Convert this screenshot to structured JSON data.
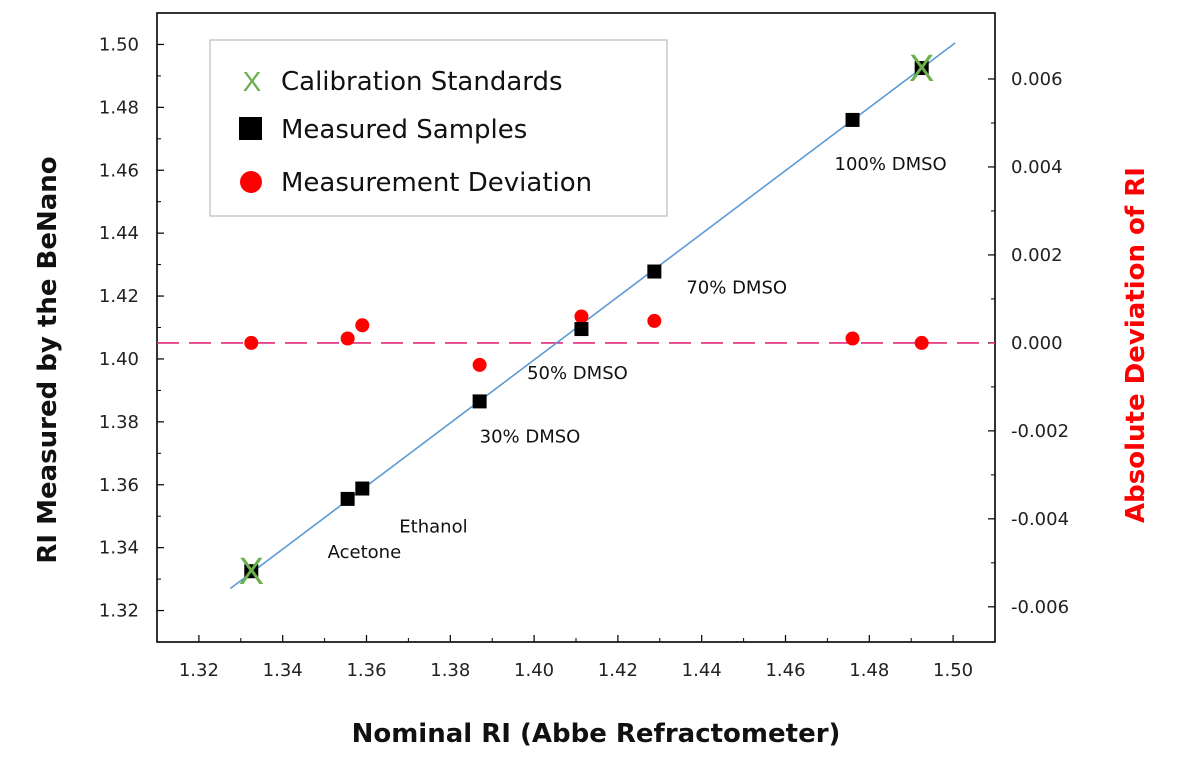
{
  "chart_data": {
    "type": "scatter",
    "xlabel": "Nominal RI (Abbe Refractometer)",
    "ylabel": "RI Measured by the BeNano",
    "y2label": "Absolute Deviation of RI",
    "xlim": [
      1.31,
      1.51
    ],
    "ylim": [
      1.31,
      1.51
    ],
    "y2lim": [
      -0.0068,
      0.0075
    ],
    "xticks": [
      "1.32",
      "1.34",
      "1.36",
      "1.38",
      "1.40",
      "1.42",
      "1.44",
      "1.46",
      "1.48",
      "1.50"
    ],
    "yticks": [
      "1.32",
      "1.34",
      "1.36",
      "1.38",
      "1.40",
      "1.42",
      "1.44",
      "1.46",
      "1.48",
      "1.50"
    ],
    "y2ticks": [
      "-0.006",
      "-0.004",
      "-0.002",
      "0.000",
      "0.002",
      "0.004",
      "0.006"
    ],
    "grid": false,
    "legend_position": "top-left",
    "legend": [
      {
        "label": "Calibration Standards",
        "marker": "x",
        "color": "#6ab04c"
      },
      {
        "label": "Measured Samples",
        "marker": "square",
        "color": "#000000"
      },
      {
        "label": "Measurement Deviation",
        "marker": "circle",
        "color": "#ff0000"
      }
    ],
    "series": [
      {
        "name": "Calibration Standards",
        "marker": "x",
        "color": "#6ab04c",
        "points": [
          {
            "x": 1.3325,
            "y": 1.3325
          },
          {
            "x": 1.4925,
            "y": 1.4925
          }
        ]
      },
      {
        "name": "Measured Samples",
        "marker": "square",
        "color": "#000000",
        "points": [
          {
            "x": 1.3325,
            "y": 1.3325
          },
          {
            "x": 1.3555,
            "y": 1.3555
          },
          {
            "x": 1.359,
            "y": 1.3588
          },
          {
            "x": 1.387,
            "y": 1.3865
          },
          {
            "x": 1.4113,
            "y": 1.4095
          },
          {
            "x": 1.4287,
            "y": 1.4278
          },
          {
            "x": 1.476,
            "y": 1.476
          },
          {
            "x": 1.4925,
            "y": 1.4925
          }
        ]
      },
      {
        "name": "Measurement Deviation",
        "marker": "circle",
        "color": "#ff0000",
        "axis": "right",
        "points": [
          {
            "x": 1.3325,
            "y": 0.0
          },
          {
            "x": 1.3555,
            "y": 0.0001
          },
          {
            "x": 1.359,
            "y": 0.0004
          },
          {
            "x": 1.387,
            "y": -0.0005
          },
          {
            "x": 1.4113,
            "y": 0.0006
          },
          {
            "x": 1.4287,
            "y": 0.0005
          },
          {
            "x": 1.476,
            "y": 0.0001
          },
          {
            "x": 1.4925,
            "y": 0.0
          }
        ]
      }
    ],
    "fit_line": {
      "color": "#5b9bd5",
      "x": [
        1.3275,
        1.5005
      ],
      "y": [
        1.327,
        1.5005
      ]
    },
    "reference_line": {
      "axis": "right",
      "y": 0.0,
      "color": "#e0297a",
      "style": "dashed"
    },
    "annotations": [
      {
        "text": "100% DMSO",
        "x": 1.476,
        "y": 1.476
      },
      {
        "text": "70% DMSO",
        "x": 1.4287,
        "y": 1.4278
      },
      {
        "text": "50% DMSO",
        "x": 1.4113,
        "y": 1.4095
      },
      {
        "text": "30% DMSO",
        "x": 1.387,
        "y": 1.3865
      },
      {
        "text": "Ethanol",
        "x": 1.359,
        "y": 1.3588
      },
      {
        "text": "Acetone",
        "x": 1.3555,
        "y": 1.3555
      }
    ]
  }
}
